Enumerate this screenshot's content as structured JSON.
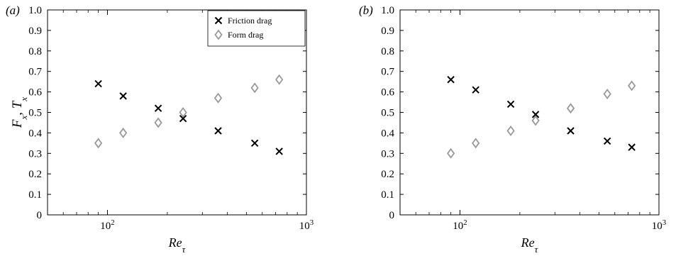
{
  "figure": {
    "legend": {
      "items": [
        {
          "label": "Friction drag",
          "marker": "cross",
          "color": "#000000"
        },
        {
          "label": "Form drag",
          "marker": "diamond",
          "color": "#999999"
        }
      ]
    }
  },
  "chart_data": [
    {
      "type": "scatter",
      "panel_label": "(a)",
      "ylabel": "F_x, T_x",
      "xlabel": "Re_τ",
      "xscale": "log",
      "xlim": [
        50,
        1000
      ],
      "ylim": [
        0,
        1.0
      ],
      "x_ticks": [
        "10^2",
        "10^3"
      ],
      "y_ticks": [
        "0",
        "0.1",
        "0.2",
        "0.3",
        "0.4",
        "0.5",
        "0.6",
        "0.7",
        "0.8",
        "0.9",
        "1.0"
      ],
      "legend_position": "top-right",
      "grid": false,
      "series": [
        {
          "name": "Friction drag",
          "marker": "cross",
          "color": "#000000",
          "x": [
            90,
            120,
            180,
            240,
            360,
            550,
            730
          ],
          "y": [
            0.64,
            0.58,
            0.52,
            0.47,
            0.41,
            0.35,
            0.31
          ]
        },
        {
          "name": "Form drag",
          "marker": "diamond",
          "color": "#999999",
          "x": [
            90,
            120,
            180,
            240,
            360,
            550,
            730
          ],
          "y": [
            0.35,
            0.4,
            0.45,
            0.5,
            0.57,
            0.62,
            0.66
          ]
        }
      ]
    },
    {
      "type": "scatter",
      "panel_label": "(b)",
      "ylabel": "",
      "xlabel": "Re_τ",
      "xscale": "log",
      "xlim": [
        50,
        1000
      ],
      "ylim": [
        0,
        1.0
      ],
      "x_ticks": [
        "10^2",
        "10^3"
      ],
      "y_ticks": [
        "0",
        "0.1",
        "0.2",
        "0.3",
        "0.4",
        "0.5",
        "0.6",
        "0.7",
        "0.8",
        "0.9",
        "1.0"
      ],
      "grid": false,
      "series": [
        {
          "name": "Friction drag",
          "marker": "cross",
          "color": "#000000",
          "x": [
            90,
            120,
            180,
            240,
            360,
            550,
            730
          ],
          "y": [
            0.66,
            0.61,
            0.54,
            0.49,
            0.41,
            0.36,
            0.33
          ]
        },
        {
          "name": "Form drag",
          "marker": "diamond",
          "color": "#999999",
          "x": [
            90,
            120,
            180,
            240,
            360,
            550,
            730
          ],
          "y": [
            0.3,
            0.35,
            0.41,
            0.46,
            0.52,
            0.59,
            0.63
          ]
        }
      ]
    }
  ]
}
